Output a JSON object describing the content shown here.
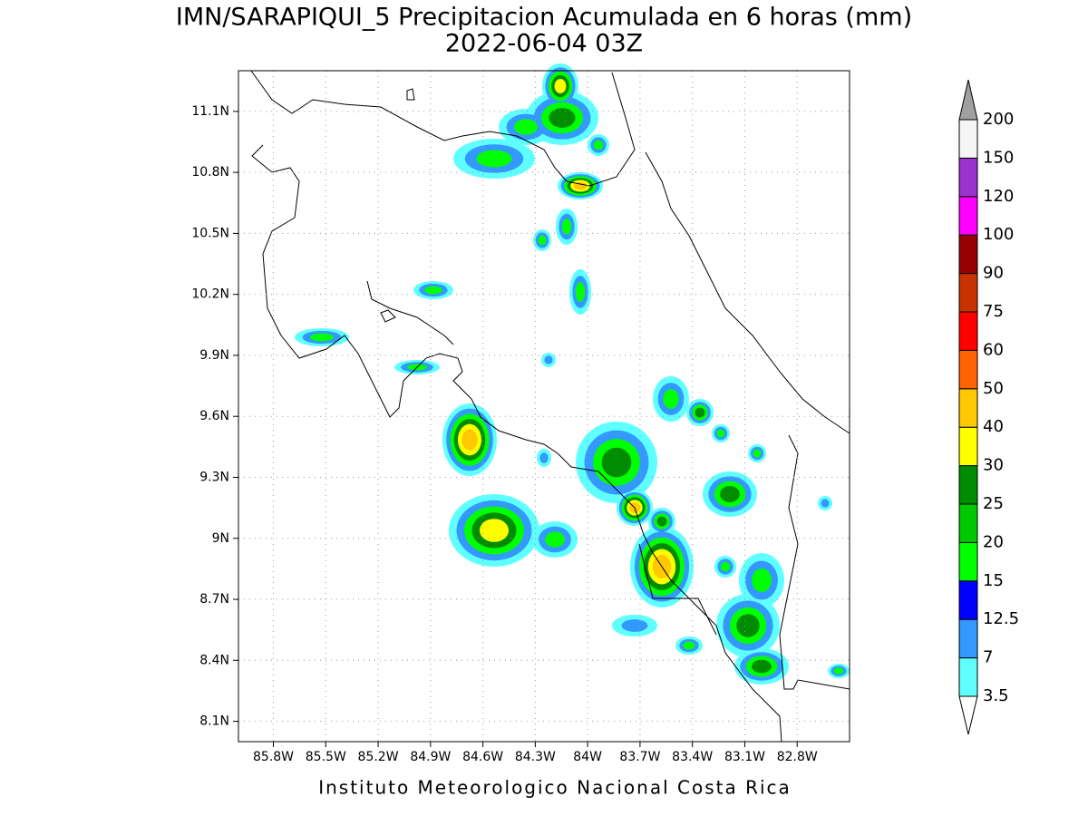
{
  "title": "IMN/SARAPIQUI_5 Precipitacion Acumulada en 6 horas (mm)",
  "subtitle": "2022-06-04 03Z",
  "map": {
    "xlim": [
      -86.0,
      -82.5
    ],
    "ylim": [
      8.0,
      11.3
    ],
    "grid": true,
    "xticks": [
      {
        "value": -85.8,
        "label": "85.8W"
      },
      {
        "value": -85.5,
        "label": "85.5W"
      },
      {
        "value": -85.2,
        "label": "85.2W"
      },
      {
        "value": -84.9,
        "label": "84.9W"
      },
      {
        "value": -84.6,
        "label": "84.6W"
      },
      {
        "value": -84.3,
        "label": "84.3W"
      },
      {
        "value": -84.0,
        "label": "84W"
      },
      {
        "value": -83.7,
        "label": "83.7W"
      },
      {
        "value": -83.4,
        "label": "83.4W"
      },
      {
        "value": -83.1,
        "label": "83.1W"
      },
      {
        "value": -82.8,
        "label": "82.8W"
      }
    ],
    "yticks": [
      {
        "value": 8.1,
        "label": "8.1N"
      },
      {
        "value": 8.4,
        "label": "8.4N"
      },
      {
        "value": 8.7,
        "label": "8.7N"
      },
      {
        "value": 9.0,
        "label": "9N"
      },
      {
        "value": 9.3,
        "label": "9.3N"
      },
      {
        "value": 9.6,
        "label": "9.6N"
      },
      {
        "value": 9.9,
        "label": "9.9N"
      },
      {
        "value": 10.2,
        "label": "10.2N"
      },
      {
        "value": 10.5,
        "label": "10.5N"
      },
      {
        "value": 10.8,
        "label": "10.8N"
      },
      {
        "value": 11.1,
        "label": "11.1N"
      }
    ]
  },
  "colorbar": {
    "levels": [
      3.5,
      7,
      12.5,
      15,
      20,
      25,
      30,
      40,
      50,
      60,
      75,
      90,
      100,
      120,
      150,
      200
    ],
    "colors": [
      "#5fffff",
      "#3399ff",
      "#0000ff",
      "#00ff00",
      "#00c800",
      "#008c00",
      "#ffff00",
      "#ffc800",
      "#ff6400",
      "#ff0000",
      "#c83200",
      "#960000",
      "#ff00ff",
      "#9933cc",
      "#f5f5f5"
    ],
    "under_color": "#ffffff",
    "over_color": "#a0a0a0"
  },
  "footer": "Instituto Meteorologico Nacional Costa Rica"
}
